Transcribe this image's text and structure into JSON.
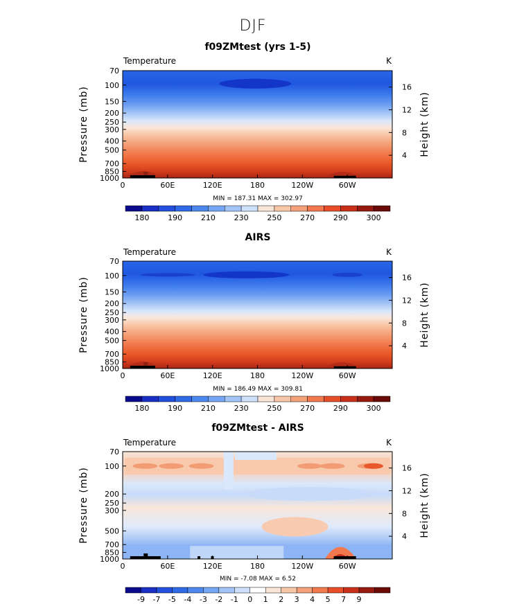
{
  "figure": {
    "title": "DJF"
  },
  "chart_data": [
    {
      "type": "heatmap",
      "title": "f09ZMtest (yrs 1-5)",
      "variable_label": "Temperature",
      "units": "K",
      "ylabel": "Pressure (mb)",
      "ylabel_right": "Height (km)",
      "x_ticks": [
        "0",
        "60E",
        "120E",
        "180",
        "120W",
        "60W"
      ],
      "xlim": [
        0,
        360
      ],
      "y_ticks": [
        "70",
        "100",
        "150",
        "200",
        "250",
        "300",
        "400",
        "500",
        "700",
        "850",
        "1000"
      ],
      "y_tick_values": [
        70,
        100,
        150,
        200,
        250,
        300,
        400,
        500,
        700,
        850,
        1000
      ],
      "ylim": [
        1000,
        70
      ],
      "height_ticks": [
        "16",
        "12",
        "8",
        "4"
      ],
      "height_tick_values": [
        16,
        12,
        8,
        4
      ],
      "stats": "MIN = 187.31   MAX = 302.97",
      "colorbar": {
        "labels": [
          "180",
          "190",
          "210",
          "230",
          "250",
          "270",
          "290",
          "300"
        ],
        "colors": [
          "#0a0a8c",
          "#1a2fc4",
          "#2250dc",
          "#2f6ae6",
          "#4d88ef",
          "#74a6f4",
          "#a2c4f7",
          "#cde0fa",
          "#f9e5d6",
          "#f8c7a8",
          "#f5a27a",
          "#f2784e",
          "#e84f28",
          "#c8301a",
          "#961a10",
          "#6b0b08"
        ]
      }
    },
    {
      "type": "heatmap",
      "title": "AIRS",
      "variable_label": "Temperature",
      "units": "K",
      "ylabel": "Pressure (mb)",
      "ylabel_right": "Height (km)",
      "x_ticks": [
        "0",
        "60E",
        "120E",
        "180",
        "120W",
        "60W"
      ],
      "xlim": [
        0,
        360
      ],
      "y_ticks": [
        "70",
        "100",
        "150",
        "200",
        "250",
        "300",
        "400",
        "500",
        "700",
        "850",
        "1000"
      ],
      "y_tick_values": [
        70,
        100,
        150,
        200,
        250,
        300,
        400,
        500,
        700,
        850,
        1000
      ],
      "ylim": [
        1000,
        70
      ],
      "height_ticks": [
        "16",
        "12",
        "8",
        "4"
      ],
      "height_tick_values": [
        16,
        12,
        8,
        4
      ],
      "stats": "MIN = 186.49   MAX = 309.81",
      "colorbar": {
        "labels": [
          "180",
          "190",
          "210",
          "230",
          "250",
          "270",
          "290",
          "300"
        ],
        "colors": [
          "#0a0a8c",
          "#1a2fc4",
          "#2250dc",
          "#2f6ae6",
          "#4d88ef",
          "#74a6f4",
          "#a2c4f7",
          "#cde0fa",
          "#f9e5d6",
          "#f8c7a8",
          "#f5a27a",
          "#f2784e",
          "#e84f28",
          "#c8301a",
          "#961a10",
          "#6b0b08"
        ]
      }
    },
    {
      "type": "heatmap",
      "title": "f09ZMtest - AIRS",
      "variable_label": "Temperature",
      "units": "K",
      "ylabel": "Pressure (mb)",
      "ylabel_right": "Height (km)",
      "x_ticks": [
        "0",
        "60E",
        "120E",
        "180",
        "120W",
        "60W"
      ],
      "xlim": [
        0,
        360
      ],
      "y_ticks": [
        "70",
        "100",
        "200",
        "250",
        "300",
        "500",
        "700",
        "850",
        "1000"
      ],
      "y_tick_values": [
        70,
        100,
        200,
        250,
        300,
        500,
        700,
        850,
        1000
      ],
      "ylim": [
        1000,
        70
      ],
      "height_ticks": [
        "16",
        "12",
        "8",
        "4"
      ],
      "height_tick_values": [
        16,
        12,
        8,
        4
      ],
      "stats": "MIN = -7.08   MAX =   6.52",
      "colorbar": {
        "labels": [
          "-9",
          "-7",
          "-5",
          "-4",
          "-3",
          "-2",
          "-1",
          "0",
          "1",
          "2",
          "3",
          "4",
          "5",
          "7",
          "9"
        ],
        "colors": [
          "#0a0a8c",
          "#1a2fc4",
          "#2250dc",
          "#2f6ae6",
          "#4d88ef",
          "#74a6f4",
          "#a2c4f7",
          "#cde0fa",
          "#ffffff",
          "#f9e5d6",
          "#f8c7a8",
          "#f5a27a",
          "#f2784e",
          "#e84f28",
          "#c8301a",
          "#961a10",
          "#6b0b08"
        ]
      }
    }
  ]
}
